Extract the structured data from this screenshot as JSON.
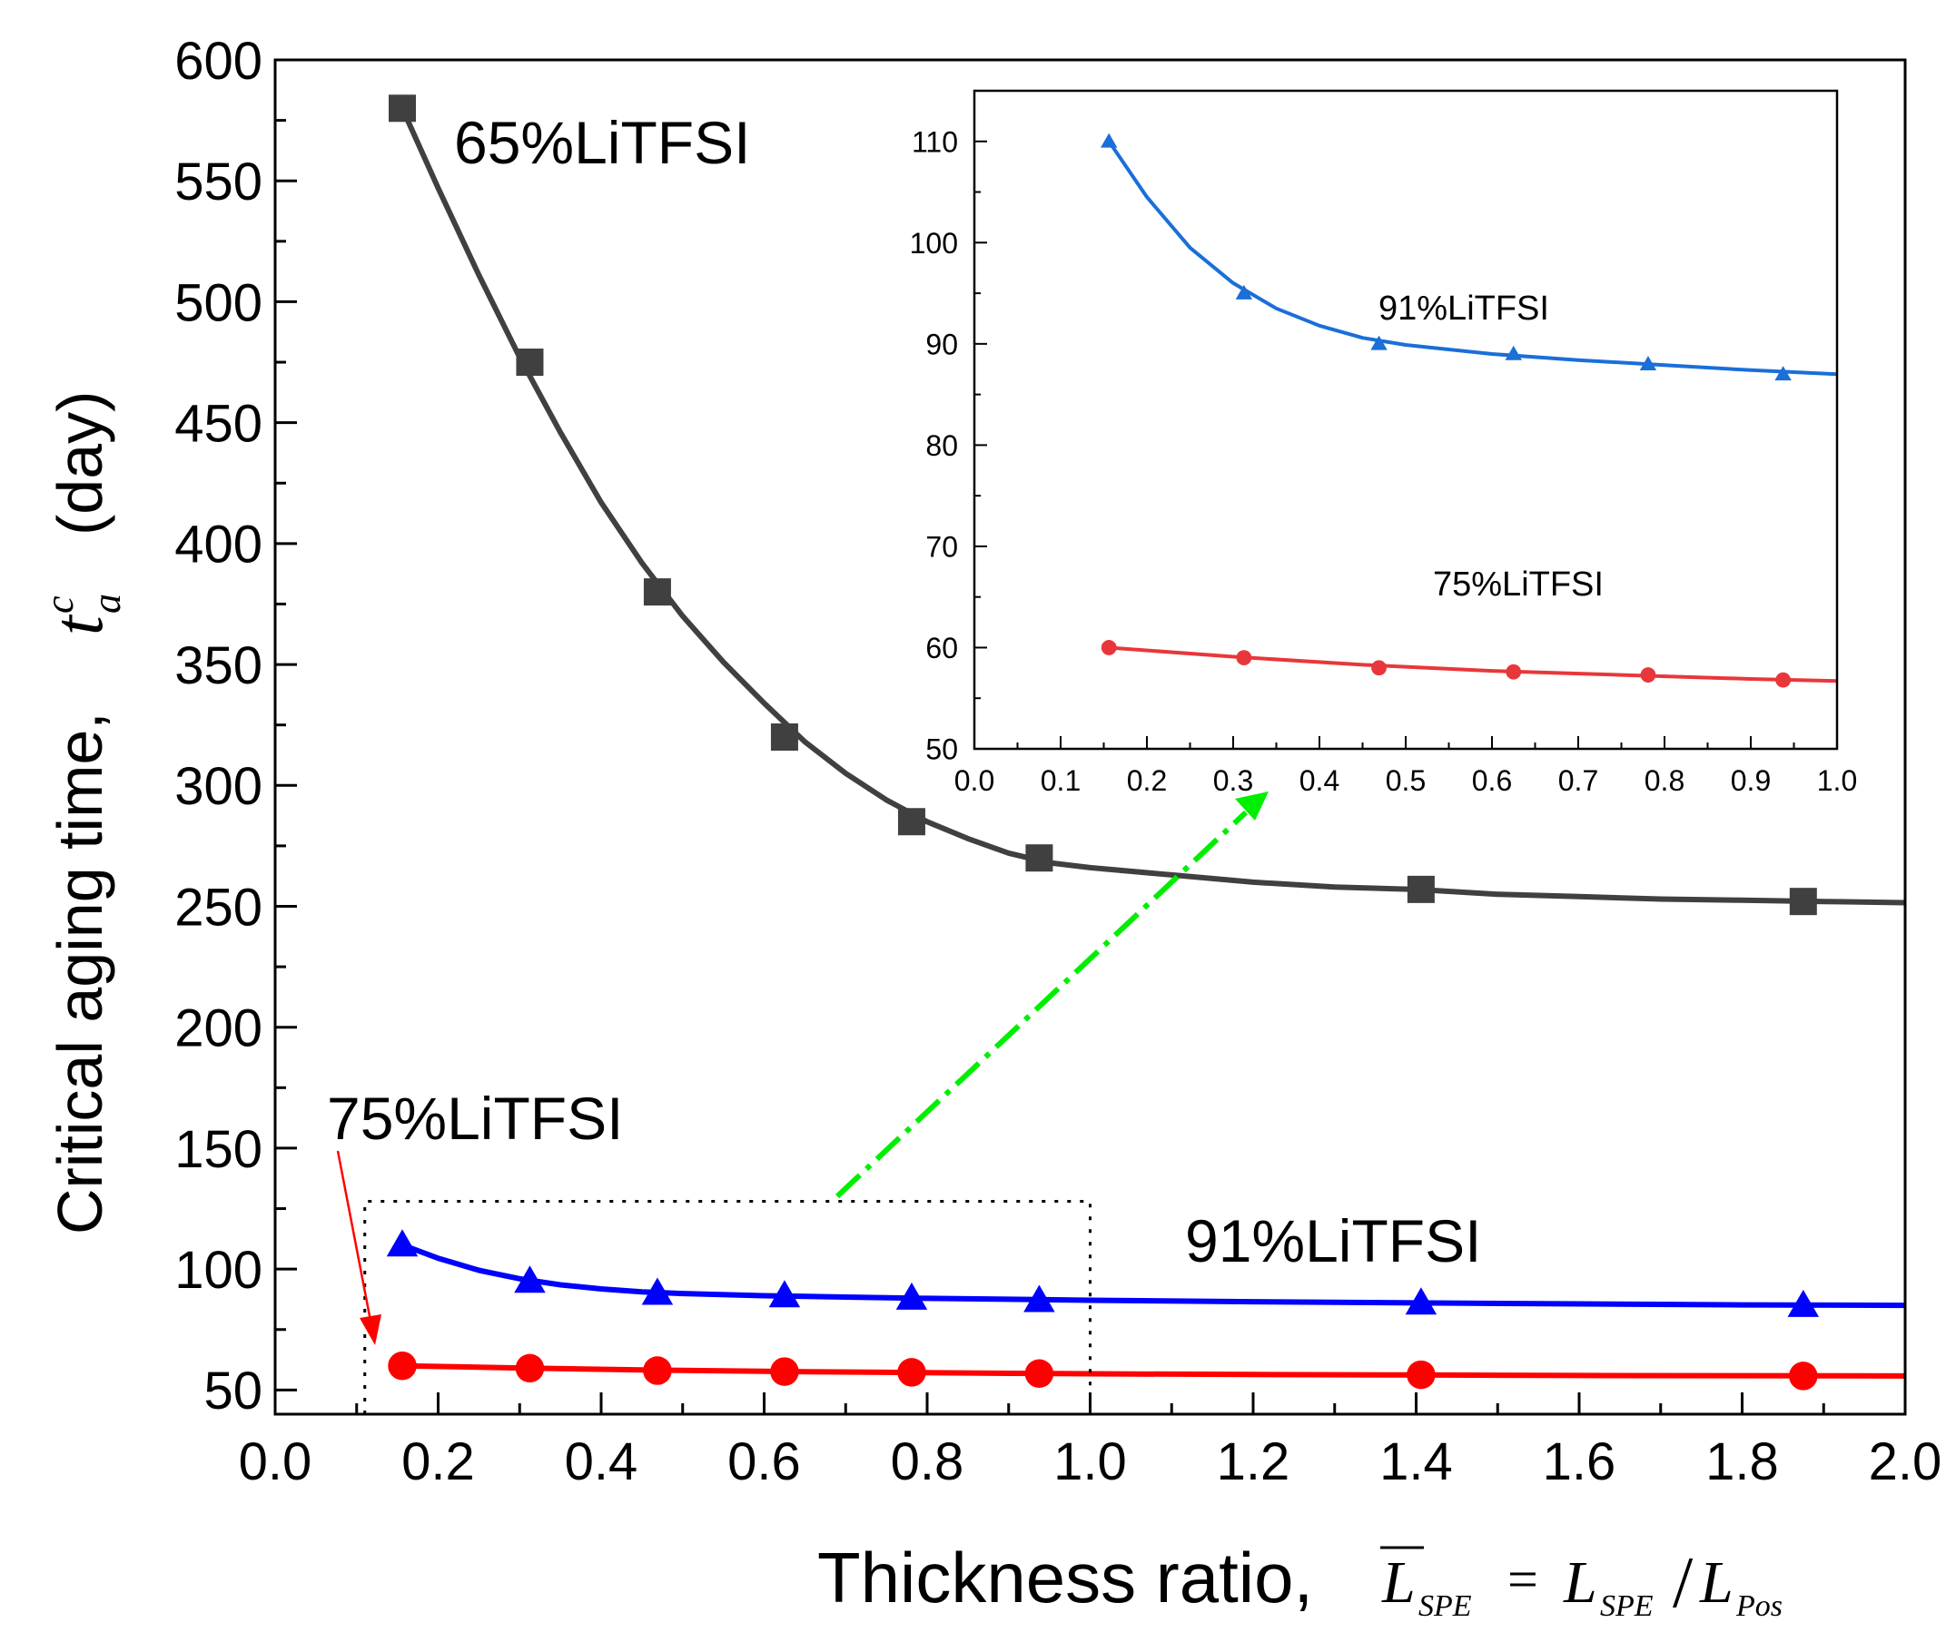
{
  "chart_data": [
    {
      "type": "line",
      "xlabel_text": "Thickness ratio,",
      "xlabel_formula": {
        "lhs": "L",
        "lhs_sub": "SPE",
        "eq": "=",
        "num": "L",
        "num_sub": "SPE",
        "slash": "/",
        "den": "L",
        "den_sub": "Pos"
      },
      "ylabel_text": "Critical aging time,",
      "ylabel_symbol": "t",
      "ylabel_sup": "c",
      "ylabel_sub": "a",
      "ylabel_unit": "(day)",
      "xlim": [
        0.0,
        2.0
      ],
      "ylim": [
        40,
        600
      ],
      "xticks": [
        "0.0",
        "0.2",
        "0.4",
        "0.6",
        "0.8",
        "1.0",
        "1.2",
        "1.4",
        "1.6",
        "1.8",
        "2.0"
      ],
      "yticks": [
        "50",
        "100",
        "150",
        "200",
        "250",
        "300",
        "350",
        "400",
        "450",
        "500",
        "550",
        "600"
      ],
      "grid": false,
      "series": [
        {
          "name": "65%LiTFSI",
          "color": "#404040",
          "marker": "square",
          "x": [
            0.156,
            0.3125,
            0.469,
            0.625,
            0.781,
            0.9375,
            1.406,
            1.875
          ],
          "y": [
            580,
            475,
            380,
            320,
            285,
            270,
            257,
            252
          ],
          "fit_x": [
            0.156,
            0.2,
            0.25,
            0.3,
            0.35,
            0.4,
            0.45,
            0.5,
            0.55,
            0.6,
            0.65,
            0.7,
            0.75,
            0.8,
            0.85,
            0.9,
            0.95,
            1.0,
            1.1,
            1.2,
            1.3,
            1.4,
            1.5,
            1.6,
            1.7,
            1.8,
            1.9,
            2.0
          ],
          "fit_y": [
            580,
            547,
            511,
            477,
            446,
            417,
            392,
            370,
            351,
            334,
            318,
            305,
            294,
            285,
            278,
            272,
            268,
            266,
            263,
            260,
            258,
            257,
            255,
            254,
            253,
            252.5,
            252,
            251.5
          ]
        },
        {
          "name": "91%LiTFSI",
          "color": "#0000ff",
          "marker": "triangle",
          "x": [
            0.156,
            0.3125,
            0.469,
            0.625,
            0.781,
            0.9375,
            1.406,
            1.875
          ],
          "y": [
            110,
            95,
            90,
            89,
            88,
            87,
            86,
            85
          ],
          "fit_x": [
            0.156,
            0.2,
            0.25,
            0.3,
            0.35,
            0.4,
            0.45,
            0.5,
            0.6,
            0.7,
            0.8,
            0.9,
            1.0,
            1.2,
            1.4,
            1.6,
            1.8,
            2.0
          ],
          "fit_y": [
            110,
            104.5,
            99.5,
            96,
            93.5,
            91.8,
            90.6,
            89.9,
            89.0,
            88.4,
            87.9,
            87.5,
            87.1,
            86.5,
            86.0,
            85.6,
            85.2,
            85.0
          ]
        },
        {
          "name": "75%LiTFSI",
          "color": "#ff0000",
          "marker": "circle",
          "x": [
            0.156,
            0.3125,
            0.469,
            0.625,
            0.781,
            0.9375,
            1.406,
            1.875
          ],
          "y": [
            60,
            59,
            58,
            57.6,
            57.3,
            56.8,
            56.3,
            55.8
          ],
          "fit_x": [
            0.156,
            0.3,
            0.45,
            0.6,
            0.75,
            0.9,
            1.0,
            1.2,
            1.4,
            1.6,
            1.8,
            2.0
          ],
          "fit_y": [
            60,
            59.1,
            58.3,
            57.7,
            57.3,
            56.9,
            56.7,
            56.4,
            56.2,
            56.0,
            55.9,
            55.8
          ]
        }
      ],
      "annotations": [
        {
          "text": "65%LiTFSI",
          "color": "#000000"
        },
        {
          "text": "75%LiTFSI",
          "color": "#ff0000"
        },
        {
          "text": "91%LiTFSI",
          "color": "#0000ff"
        }
      ],
      "zoom_box": {
        "x": [
          0.11,
          1.0
        ],
        "y": [
          40,
          128
        ]
      }
    },
    {
      "type": "line",
      "inset": true,
      "xlim": [
        0.0,
        1.0
      ],
      "ylim": [
        50,
        115
      ],
      "xticks": [
        "0.0",
        "0.1",
        "0.2",
        "0.3",
        "0.4",
        "0.5",
        "0.6",
        "0.7",
        "0.8",
        "0.9",
        "1.0"
      ],
      "yticks": [
        "50",
        "60",
        "70",
        "80",
        "90",
        "100",
        "110"
      ],
      "grid": false,
      "series": [
        {
          "name": "91%LiTFSI",
          "color": "#1a6fd8",
          "marker": "triangle",
          "x": [
            0.156,
            0.3125,
            0.469,
            0.625,
            0.781,
            0.9375
          ],
          "y": [
            110,
            95,
            90,
            89,
            88,
            87
          ],
          "fit_x": [
            0.156,
            0.2,
            0.25,
            0.3,
            0.35,
            0.4,
            0.45,
            0.5,
            0.6,
            0.7,
            0.8,
            0.9,
            1.0
          ],
          "fit_y": [
            110,
            104.5,
            99.5,
            96,
            93.5,
            91.8,
            90.6,
            89.9,
            89.0,
            88.4,
            87.9,
            87.4,
            87.0
          ]
        },
        {
          "name": "75%LiTFSI",
          "color": "#e8373a",
          "marker": "circle",
          "x": [
            0.156,
            0.3125,
            0.469,
            0.625,
            0.781,
            0.9375
          ],
          "y": [
            60,
            59,
            58,
            57.6,
            57.3,
            56.8
          ],
          "fit_x": [
            0.156,
            0.3,
            0.45,
            0.6,
            0.75,
            0.9,
            1.0
          ],
          "fit_y": [
            60,
            59.1,
            58.3,
            57.7,
            57.3,
            56.9,
            56.7
          ]
        }
      ],
      "annotations": [
        {
          "text": "91%LiTFSI",
          "color": "#0000ff"
        },
        {
          "text": "75%LiTFSI",
          "color": "#ff0000"
        }
      ]
    }
  ]
}
